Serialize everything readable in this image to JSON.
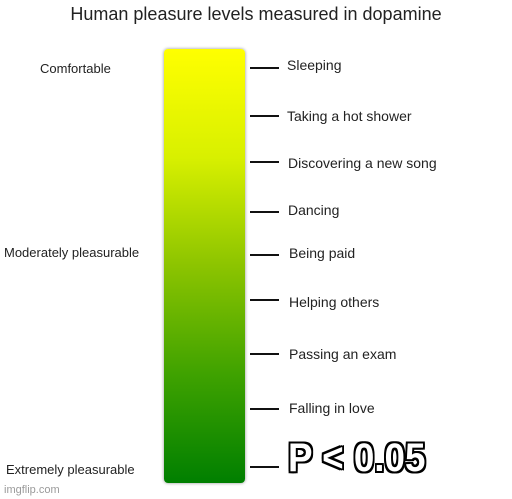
{
  "title": "Human pleasure levels measured in dopamine",
  "scale_labels": {
    "top": "Comfortable",
    "middle": "Moderately pleasurable",
    "bottom": "Extremely pleasurable"
  },
  "gradient_colors": {
    "top": "#ffff00",
    "bottom": "#007f00"
  },
  "items": [
    "Sleeping",
    "Taking a hot shower",
    "Discovering a new song",
    "Dancing",
    "Being paid",
    "Helping others",
    "Passing an exam",
    "Falling in love"
  ],
  "top_item_overlay": "P < 0.05",
  "watermark": "imgflip.com"
}
